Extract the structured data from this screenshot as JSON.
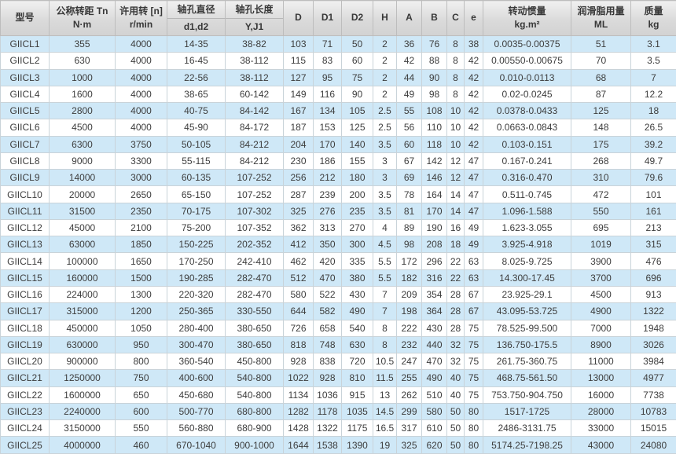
{
  "colors": {
    "stripe_blue": "#cfe8f7",
    "row_white": "#ffffff",
    "header_gray": "#d9d9d9",
    "grid_border": "#c9d3d9",
    "text": "#3d3d3d"
  },
  "table": {
    "headers": {
      "model": "型号",
      "torque": [
        "公称转距 Tn",
        "N·m"
      ],
      "speed": [
        "许用转 [n]",
        "r/min"
      ],
      "bore_diameter": [
        "轴孔直径",
        "d1,d2"
      ],
      "bore_length": [
        "轴孔长度",
        "Y,J1"
      ],
      "d": "D",
      "d1": "D1",
      "d2": "D2",
      "h": "H",
      "a": "A",
      "b": "B",
      "c": "C",
      "e": "e",
      "inertia": [
        "转动惯量",
        "kg.m²"
      ],
      "grease": [
        "润滑脂用量",
        "ML"
      ],
      "mass": [
        "质量",
        "kg"
      ]
    },
    "rows": [
      [
        "GIICL1",
        "355",
        "4000",
        "14-35",
        "38-82",
        "103",
        "71",
        "50",
        "2",
        "36",
        "76",
        "8",
        "38",
        "0.0035-0.00375",
        "51",
        "3.1"
      ],
      [
        "GIICL2",
        "630",
        "4000",
        "16-45",
        "38-112",
        "115",
        "83",
        "60",
        "2",
        "42",
        "88",
        "8",
        "42",
        "0.00550-0.00675",
        "70",
        "3.5"
      ],
      [
        "GIICL3",
        "1000",
        "4000",
        "22-56",
        "38-112",
        "127",
        "95",
        "75",
        "2",
        "44",
        "90",
        "8",
        "42",
        "0.010-0.0113",
        "68",
        "7"
      ],
      [
        "GIICL4",
        "1600",
        "4000",
        "38-65",
        "60-142",
        "149",
        "116",
        "90",
        "2",
        "49",
        "98",
        "8",
        "42",
        "0.02-0.0245",
        "87",
        "12.2"
      ],
      [
        "GIICL5",
        "2800",
        "4000",
        "40-75",
        "84-142",
        "167",
        "134",
        "105",
        "2.5",
        "55",
        "108",
        "10",
        "42",
        "0.0378-0.0433",
        "125",
        "18"
      ],
      [
        "GIICL6",
        "4500",
        "4000",
        "45-90",
        "84-172",
        "187",
        "153",
        "125",
        "2.5",
        "56",
        "110",
        "10",
        "42",
        "0.0663-0.0843",
        "148",
        "26.5"
      ],
      [
        "GIICL7",
        "6300",
        "3750",
        "50-105",
        "84-212",
        "204",
        "170",
        "140",
        "3.5",
        "60",
        "118",
        "10",
        "42",
        "0.103-0.151",
        "175",
        "39.2"
      ],
      [
        "GIICL8",
        "9000",
        "3300",
        "55-115",
        "84-212",
        "230",
        "186",
        "155",
        "3",
        "67",
        "142",
        "12",
        "47",
        "0.167-0.241",
        "268",
        "49.7"
      ],
      [
        "GIICL9",
        "14000",
        "3000",
        "60-135",
        "107-252",
        "256",
        "212",
        "180",
        "3",
        "69",
        "146",
        "12",
        "47",
        "0.316-0.470",
        "310",
        "79.6"
      ],
      [
        "GIICL10",
        "20000",
        "2650",
        "65-150",
        "107-252",
        "287",
        "239",
        "200",
        "3.5",
        "78",
        "164",
        "14",
        "47",
        "0.511-0.745",
        "472",
        "101"
      ],
      [
        "GIICL11",
        "31500",
        "2350",
        "70-175",
        "107-302",
        "325",
        "276",
        "235",
        "3.5",
        "81",
        "170",
        "14",
        "47",
        "1.096-1.588",
        "550",
        "161"
      ],
      [
        "GIICL12",
        "45000",
        "2100",
        "75-200",
        "107-352",
        "362",
        "313",
        "270",
        "4",
        "89",
        "190",
        "16",
        "49",
        "1.623-3.055",
        "695",
        "213"
      ],
      [
        "GIICL13",
        "63000",
        "1850",
        "150-225",
        "202-352",
        "412",
        "350",
        "300",
        "4.5",
        "98",
        "208",
        "18",
        "49",
        "3.925-4.918",
        "1019",
        "315"
      ],
      [
        "GIICL14",
        "100000",
        "1650",
        "170-250",
        "242-410",
        "462",
        "420",
        "335",
        "5.5",
        "172",
        "296",
        "22",
        "63",
        "8.025-9.725",
        "3900",
        "476"
      ],
      [
        "GIICL15",
        "160000",
        "1500",
        "190-285",
        "282-470",
        "512",
        "470",
        "380",
        "5.5",
        "182",
        "316",
        "22",
        "63",
        "14.300-17.45",
        "3700",
        "696"
      ],
      [
        "GIICL16",
        "224000",
        "1300",
        "220-320",
        "282-470",
        "580",
        "522",
        "430",
        "7",
        "209",
        "354",
        "28",
        "67",
        "23.925-29.1",
        "4500",
        "913"
      ],
      [
        "GIICL17",
        "315000",
        "1200",
        "250-365",
        "330-550",
        "644",
        "582",
        "490",
        "7",
        "198",
        "364",
        "28",
        "67",
        "43.095-53.725",
        "4900",
        "1322"
      ],
      [
        "GIICL18",
        "450000",
        "1050",
        "280-400",
        "380-650",
        "726",
        "658",
        "540",
        "8",
        "222",
        "430",
        "28",
        "75",
        "78.525-99.500",
        "7000",
        "1948"
      ],
      [
        "GIICL19",
        "630000",
        "950",
        "300-470",
        "380-650",
        "818",
        "748",
        "630",
        "8",
        "232",
        "440",
        "32",
        "75",
        "136.750-175.5",
        "8900",
        "3026"
      ],
      [
        "GIICL20",
        "900000",
        "800",
        "360-540",
        "450-800",
        "928",
        "838",
        "720",
        "10.5",
        "247",
        "470",
        "32",
        "75",
        "261.75-360.75",
        "11000",
        "3984"
      ],
      [
        "GIICL21",
        "1250000",
        "750",
        "400-600",
        "540-800",
        "1022",
        "928",
        "810",
        "11.5",
        "255",
        "490",
        "40",
        "75",
        "468.75-561.50",
        "13000",
        "4977"
      ],
      [
        "GIICL22",
        "1600000",
        "650",
        "450-680",
        "540-800",
        "1134",
        "1036",
        "915",
        "13",
        "262",
        "510",
        "40",
        "75",
        "753.750-904.750",
        "16000",
        "7738"
      ],
      [
        "GIICL23",
        "2240000",
        "600",
        "500-770",
        "680-800",
        "1282",
        "1178",
        "1035",
        "14.5",
        "299",
        "580",
        "50",
        "80",
        "1517-1725",
        "28000",
        "10783"
      ],
      [
        "GIICL24",
        "3150000",
        "550",
        "560-880",
        "680-900",
        "1428",
        "1322",
        "1175",
        "16.5",
        "317",
        "610",
        "50",
        "80",
        "2486-3131.75",
        "33000",
        "15015"
      ],
      [
        "GIICL25",
        "4000000",
        "460",
        "670-1040",
        "900-1000",
        "1644",
        "1538",
        "1390",
        "19",
        "325",
        "620",
        "50",
        "80",
        "5174.25-7198.25",
        "43000",
        "24080"
      ]
    ]
  }
}
